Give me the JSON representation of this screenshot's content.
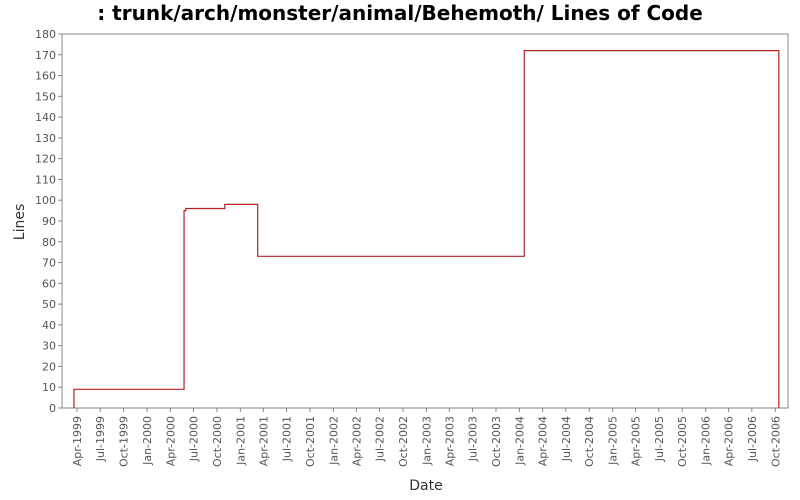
{
  "chart_data": {
    "type": "line",
    "title": ": trunk/arch/monster/animal/Behemoth/ Lines of Code",
    "xlabel": "Date",
    "ylabel": "Lines",
    "ylim": [
      0,
      180
    ],
    "yticks": [
      0,
      10,
      20,
      30,
      40,
      50,
      60,
      70,
      80,
      90,
      100,
      110,
      120,
      130,
      140,
      150,
      160,
      170,
      180
    ],
    "xlim": [
      "1999-02-01",
      "2006-11-20"
    ],
    "xticks": [
      {
        "date": "1999-04-01",
        "label": "Apr-1999"
      },
      {
        "date": "1999-07-01",
        "label": "Jul-1999"
      },
      {
        "date": "1999-10-01",
        "label": "Oct-1999"
      },
      {
        "date": "2000-01-01",
        "label": "Jan-2000"
      },
      {
        "date": "2000-04-01",
        "label": "Apr-2000"
      },
      {
        "date": "2000-07-01",
        "label": "Jul-2000"
      },
      {
        "date": "2000-10-01",
        "label": "Oct-2000"
      },
      {
        "date": "2001-01-01",
        "label": "Jan-2001"
      },
      {
        "date": "2001-04-01",
        "label": "Apr-2001"
      },
      {
        "date": "2001-07-01",
        "label": "Jul-2001"
      },
      {
        "date": "2001-10-01",
        "label": "Oct-2001"
      },
      {
        "date": "2002-01-01",
        "label": "Jan-2002"
      },
      {
        "date": "2002-04-01",
        "label": "Apr-2002"
      },
      {
        "date": "2002-07-01",
        "label": "Jul-2002"
      },
      {
        "date": "2002-10-01",
        "label": "Oct-2002"
      },
      {
        "date": "2003-01-01",
        "label": "Jan-2003"
      },
      {
        "date": "2003-04-01",
        "label": "Apr-2003"
      },
      {
        "date": "2003-07-01",
        "label": "Jul-2003"
      },
      {
        "date": "2003-10-01",
        "label": "Oct-2003"
      },
      {
        "date": "2004-01-01",
        "label": "Jan-2004"
      },
      {
        "date": "2004-04-01",
        "label": "Apr-2004"
      },
      {
        "date": "2004-07-01",
        "label": "Jul-2004"
      },
      {
        "date": "2004-10-01",
        "label": "Oct-2004"
      },
      {
        "date": "2005-01-01",
        "label": "Jan-2005"
      },
      {
        "date": "2005-04-01",
        "label": "Apr-2005"
      },
      {
        "date": "2005-07-01",
        "label": "Jul-2005"
      },
      {
        "date": "2005-10-01",
        "label": "Oct-2005"
      },
      {
        "date": "2006-01-01",
        "label": "Jan-2006"
      },
      {
        "date": "2006-04-01",
        "label": "Apr-2006"
      },
      {
        "date": "2006-07-01",
        "label": "Jul-2006"
      },
      {
        "date": "2006-10-01",
        "label": "Oct-2006"
      }
    ],
    "step": true,
    "grid": false,
    "legend": "none",
    "colors": {
      "line": "#b22222",
      "axis": "#888888",
      "plot_bg": "#ffffff"
    },
    "series": [
      {
        "points": [
          {
            "x": "1999-03-20",
            "y": 0
          },
          {
            "x": "1999-03-20",
            "y": 9
          },
          {
            "x": "2000-05-25",
            "y": 95
          },
          {
            "x": "2000-06-01",
            "y": 96
          },
          {
            "x": "2000-11-01",
            "y": 98
          },
          {
            "x": "2001-03-10",
            "y": 73
          },
          {
            "x": "2004-01-20",
            "y": 172
          },
          {
            "x": "2006-10-15",
            "y": 0
          }
        ]
      }
    ]
  }
}
